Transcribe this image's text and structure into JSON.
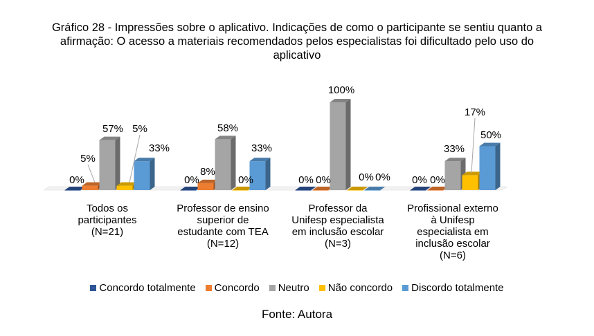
{
  "chart_data": {
    "type": "bar",
    "title": "Gráfico 28 - Impressões sobre o aplicativo. Indicações de como o participante se sentiu quanto a afirmação: O acesso a materiais recomendados pelos especialistas foi dificultado pelo uso do aplicativo",
    "title_lines": [
      "Gráfico 28 - Impressões sobre o aplicativo. Indicações de como o participante se sentiu quanto a",
      "afirmação: O acesso a materiais recomendados pelos especialistas foi dificultado pelo uso do",
      "aplicativo"
    ],
    "categories": [
      "Todos os\nparticipantes\n(N=21)",
      "Professor de ensino\nsuperior de\nestudante com TEA\n(N=12)",
      "Professor da\nUnifesp especialista\nem inclusão escolar\n(N=3)",
      "Profissional externo\nà Unifesp\nespecialista em\ninclusão escolar\n(N=6)"
    ],
    "series": [
      {
        "name": "Concordo totalmente",
        "color": "#2E5597",
        "values": [
          0,
          0,
          0,
          0
        ],
        "labels": [
          "0%",
          "0%",
          "0%",
          "0%"
        ]
      },
      {
        "name": "Concordo",
        "color": "#ED7D31",
        "values": [
          5,
          8,
          0,
          0
        ],
        "labels": [
          "5%",
          "8%",
          "0%",
          "0%"
        ]
      },
      {
        "name": "Neutro",
        "color": "#A5A5A5",
        "values": [
          57,
          58,
          100,
          33
        ],
        "labels": [
          "57%",
          "58%",
          "100%",
          "33%"
        ]
      },
      {
        "name": "Não concordo",
        "color": "#FFC000",
        "values": [
          5,
          0,
          0,
          17
        ],
        "labels": [
          "5%",
          "0%",
          "0%",
          "17%"
        ]
      },
      {
        "name": "Discordo totalmente",
        "color": "#5B9BD5",
        "values": [
          33,
          33,
          0,
          50
        ],
        "labels": [
          "33%",
          "33%",
          "0%",
          "50%"
        ]
      }
    ],
    "ylim": [
      0,
      100
    ],
    "grid": false,
    "legend_position": "bottom",
    "three_d": true
  },
  "source": "Fonte: Autora"
}
